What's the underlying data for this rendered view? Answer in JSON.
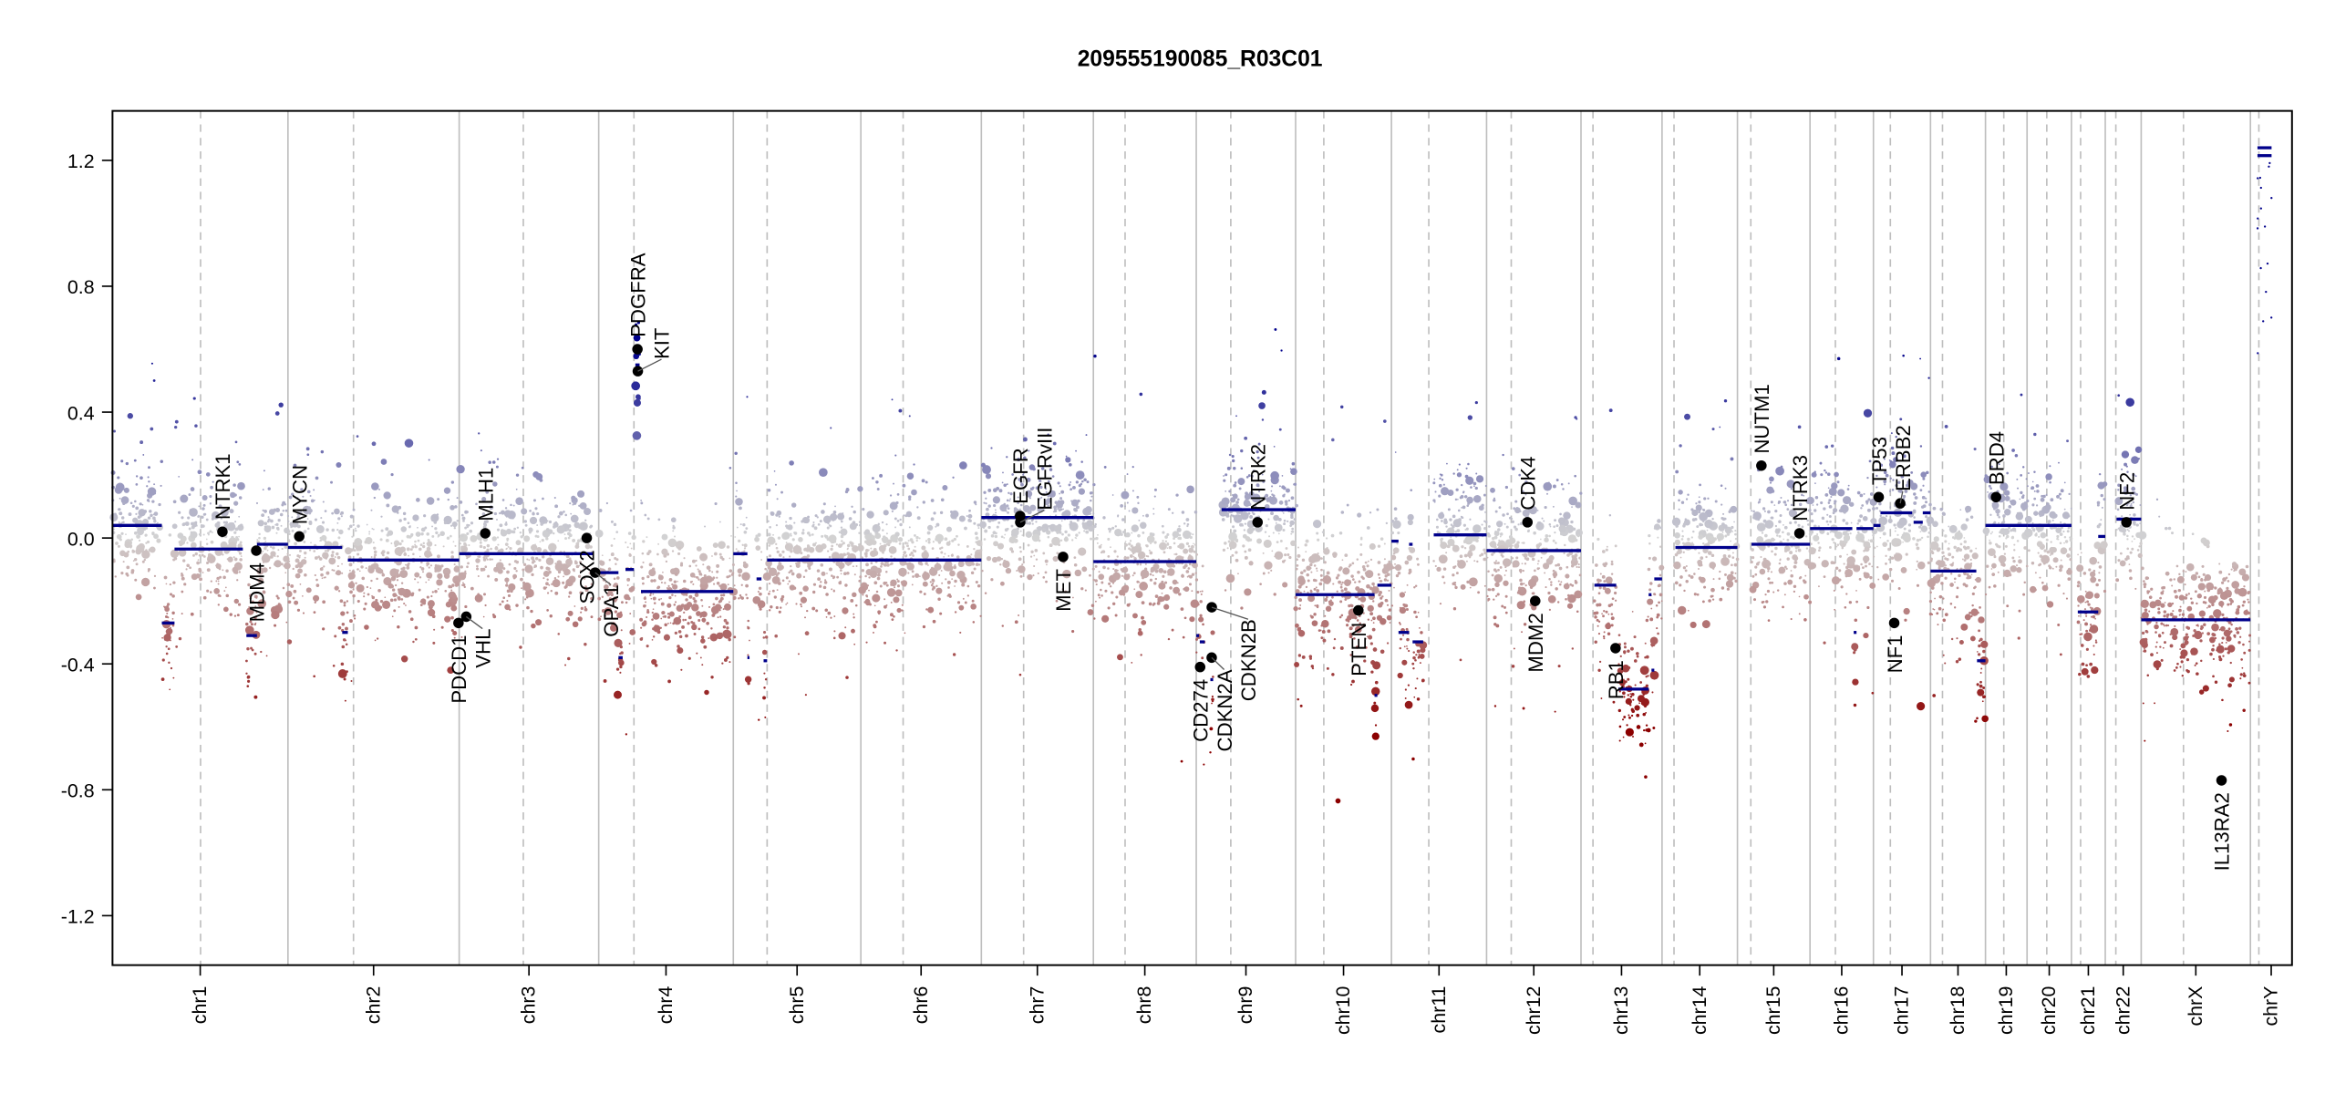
{
  "chart_data": {
    "type": "scatter",
    "title": "209555190085_R03C01",
    "xlabel": "",
    "ylabel": "",
    "ylim": [
      -1.35,
      1.35
    ],
    "y_ticks": [
      {
        "value": 1.2,
        "label": "1.2"
      },
      {
        "value": 0.8,
        "label": "0.8"
      },
      {
        "value": 0.4,
        "label": "0.4"
      },
      {
        "value": 0.0,
        "label": "0.0"
      },
      {
        "value": -0.4,
        "label": "-0.4"
      },
      {
        "value": -0.8,
        "label": "-0.8"
      },
      {
        "value": -1.2,
        "label": "-1.2"
      }
    ],
    "grid": "chromosome boundaries (solid) and centromeres (dashed)",
    "colors": {
      "loss": "#8b0000",
      "neutral": "#d3d3d3",
      "gain": "#00008b",
      "segment": "#00008b",
      "gene": "#000000",
      "boundary": "#bebebe"
    },
    "chromosomes": [
      {
        "name": "chr1",
        "length": 249,
        "centromere": 125
      },
      {
        "name": "chr2",
        "length": 243,
        "centromere": 93
      },
      {
        "name": "chr3",
        "length": 198,
        "centromere": 91
      },
      {
        "name": "chr4",
        "length": 191,
        "centromere": 50
      },
      {
        "name": "chr5",
        "length": 181,
        "centromere": 48
      },
      {
        "name": "chr6",
        "length": 171,
        "centromere": 60
      },
      {
        "name": "chr7",
        "length": 159,
        "centromere": 60
      },
      {
        "name": "chr8",
        "length": 146,
        "centromere": 45
      },
      {
        "name": "chr9",
        "length": 141,
        "centromere": 49
      },
      {
        "name": "chr10",
        "length": 136,
        "centromere": 40
      },
      {
        "name": "chr11",
        "length": 135,
        "centromere": 53
      },
      {
        "name": "chr12",
        "length": 134,
        "centromere": 35
      },
      {
        "name": "chr13",
        "length": 115,
        "centromere": 17
      },
      {
        "name": "chr14",
        "length": 107,
        "centromere": 17
      },
      {
        "name": "chr15",
        "length": 103,
        "centromere": 19
      },
      {
        "name": "chr16",
        "length": 90,
        "centromere": 36
      },
      {
        "name": "chr17",
        "length": 81,
        "centromere": 24
      },
      {
        "name": "chr18",
        "length": 78,
        "centromere": 17
      },
      {
        "name": "chr19",
        "length": 59,
        "centromere": 26
      },
      {
        "name": "chr20",
        "length": 63,
        "centromere": 28
      },
      {
        "name": "chr21",
        "length": 48,
        "centromere": 13
      },
      {
        "name": "chr22",
        "length": 51,
        "centromere": 15
      },
      {
        "name": "chrX",
        "length": 155,
        "centromere": 60
      },
      {
        "name": "chrY",
        "length": 59,
        "centromere": 12
      }
    ],
    "segments": [
      {
        "chr": "chr1",
        "start": 0,
        "end": 70,
        "value": 0.04
      },
      {
        "chr": "chr1",
        "start": 70,
        "end": 88,
        "value": -0.27
      },
      {
        "chr": "chr1",
        "start": 88,
        "end": 185,
        "value": -0.035
      },
      {
        "chr": "chr1",
        "start": 190,
        "end": 205,
        "value": -0.31
      },
      {
        "chr": "chr1",
        "start": 205,
        "end": 249,
        "value": -0.02
      },
      {
        "chr": "chr2",
        "start": 0,
        "end": 77,
        "value": -0.03
      },
      {
        "chr": "chr2",
        "start": 77,
        "end": 85,
        "value": -0.3
      },
      {
        "chr": "chr2",
        "start": 85,
        "end": 243,
        "value": -0.07
      },
      {
        "chr": "chr3",
        "start": 0,
        "end": 190,
        "value": -0.05
      },
      {
        "chr": "chr4",
        "start": 0,
        "end": 28,
        "value": -0.11
      },
      {
        "chr": "chr4",
        "start": 28,
        "end": 34,
        "value": -0.38
      },
      {
        "chr": "chr4",
        "start": 38,
        "end": 50,
        "value": -0.1
      },
      {
        "chr": "chr4",
        "start": 52,
        "end": 58,
        "value": 0.55
      },
      {
        "chr": "chr4",
        "start": 60,
        "end": 191,
        "value": -0.17
      },
      {
        "chr": "chr5",
        "start": 0,
        "end": 20,
        "value": -0.05
      },
      {
        "chr": "chr5",
        "start": 20,
        "end": 23,
        "value": -0.38
      },
      {
        "chr": "chr5",
        "start": 33,
        "end": 40,
        "value": -0.13
      },
      {
        "chr": "chr5",
        "start": 43,
        "end": 48,
        "value": -0.39
      },
      {
        "chr": "chr5",
        "start": 48,
        "end": 181,
        "value": -0.07
      },
      {
        "chr": "chr6",
        "start": 0,
        "end": 171,
        "value": -0.07
      },
      {
        "chr": "chr7",
        "start": 0,
        "end": 159,
        "value": 0.065
      },
      {
        "chr": "chr8",
        "start": 0,
        "end": 146,
        "value": -0.075
      },
      {
        "chr": "chr9",
        "start": 0,
        "end": 4,
        "value": -0.31
      },
      {
        "chr": "chr9",
        "start": 5,
        "end": 12,
        "value": -0.33
      },
      {
        "chr": "chr9",
        "start": 20,
        "end": 24,
        "value": -0.45
      },
      {
        "chr": "chr9",
        "start": 36,
        "end": 141,
        "value": 0.09
      },
      {
        "chr": "chr10",
        "start": 0,
        "end": 112,
        "value": -0.18
      },
      {
        "chr": "chr10",
        "start": 112,
        "end": 116,
        "value": -0.5
      },
      {
        "chr": "chr10",
        "start": 116,
        "end": 136,
        "value": -0.15
      },
      {
        "chr": "chr11",
        "start": 0,
        "end": 10,
        "value": -0.01
      },
      {
        "chr": "chr11",
        "start": 10,
        "end": 25,
        "value": -0.3
      },
      {
        "chr": "chr11",
        "start": 25,
        "end": 30,
        "value": -0.02
      },
      {
        "chr": "chr11",
        "start": 30,
        "end": 45,
        "value": -0.33
      },
      {
        "chr": "chr11",
        "start": 60,
        "end": 135,
        "value": 0.01
      },
      {
        "chr": "chr12",
        "start": 0,
        "end": 134,
        "value": -0.04
      },
      {
        "chr": "chr13",
        "start": 19,
        "end": 50,
        "value": -0.15
      },
      {
        "chr": "chr13",
        "start": 53,
        "end": 96,
        "value": -0.48
      },
      {
        "chr": "chr13",
        "start": 96,
        "end": 100,
        "value": -0.18
      },
      {
        "chr": "chr13",
        "start": 100,
        "end": 104,
        "value": -0.42
      },
      {
        "chr": "chr13",
        "start": 104,
        "end": 115,
        "value": -0.13
      },
      {
        "chr": "chr14",
        "start": 19,
        "end": 107,
        "value": -0.03
      },
      {
        "chr": "chr15",
        "start": 20,
        "end": 103,
        "value": -0.02
      },
      {
        "chr": "chr16",
        "start": 0,
        "end": 60,
        "value": 0.03
      },
      {
        "chr": "chr16",
        "start": 62,
        "end": 66,
        "value": -0.3
      },
      {
        "chr": "chr16",
        "start": 66,
        "end": 90,
        "value": 0.03
      },
      {
        "chr": "chr17",
        "start": 0,
        "end": 10,
        "value": 0.04
      },
      {
        "chr": "chr17",
        "start": 10,
        "end": 55,
        "value": 0.08
      },
      {
        "chr": "chr17",
        "start": 57,
        "end": 70,
        "value": 0.05
      },
      {
        "chr": "chr17",
        "start": 70,
        "end": 81,
        "value": 0.08
      },
      {
        "chr": "chr18",
        "start": 0,
        "end": 65,
        "value": -0.105
      },
      {
        "chr": "chr18",
        "start": 66,
        "end": 78,
        "value": -0.39
      },
      {
        "chr": "chr19",
        "start": 0,
        "end": 59,
        "value": 0.04
      },
      {
        "chr": "chr20",
        "start": 0,
        "end": 63,
        "value": 0.04
      },
      {
        "chr": "chr21",
        "start": 9,
        "end": 38,
        "value": -0.235
      },
      {
        "chr": "chr21",
        "start": 38,
        "end": 48,
        "value": 0.005
      },
      {
        "chr": "chr22",
        "start": 16,
        "end": 51,
        "value": 0.06
      },
      {
        "chr": "chrX",
        "start": 0,
        "end": 155,
        "value": -0.26
      },
      {
        "chr": "chrY",
        "start": 10,
        "end": 30,
        "value": 1.24
      },
      {
        "chr": "chrY",
        "start": 10,
        "end": 30,
        "value": 1.215
      }
    ],
    "genes": [
      {
        "name": "NTRK1",
        "chr": "chr1",
        "pos": 156,
        "value": 0.02,
        "label_side": "above"
      },
      {
        "name": "MDM4",
        "chr": "chr1",
        "pos": 204,
        "value": -0.04,
        "label_side": "below"
      },
      {
        "name": "MYCN",
        "chr": "chr2",
        "pos": 16,
        "value": 0.005,
        "label_side": "above"
      },
      {
        "name": "PDCD1",
        "chr": "chr2",
        "pos": 242,
        "value": -0.27,
        "label_side": "below"
      },
      {
        "name": "VHL",
        "chr": "chr3",
        "pos": 10,
        "value": -0.25,
        "label_side": "below"
      },
      {
        "name": "MLH1",
        "chr": "chr3",
        "pos": 37,
        "value": 0.015,
        "label_side": "above"
      },
      {
        "name": "SOX2",
        "chr": "chr3",
        "pos": 181,
        "value": 0.0,
        "label_side": "below"
      },
      {
        "name": "OPA1",
        "chr": "chr3",
        "pos": 193,
        "value": -0.11,
        "label_side": "below"
      },
      {
        "name": "PDGFRA",
        "chr": "chr4",
        "pos": 55,
        "value": 0.6,
        "label_side": "above"
      },
      {
        "name": "KIT",
        "chr": "chr4",
        "pos": 55.5,
        "value": 0.53,
        "label_side": "above"
      },
      {
        "name": "EGFR",
        "chr": "chr7",
        "pos": 55,
        "value": 0.07,
        "label_side": "above"
      },
      {
        "name": "EGFRvIII",
        "chr": "chr7",
        "pos": 55.2,
        "value": 0.05,
        "label_side": "above"
      },
      {
        "name": "MET",
        "chr": "chr7",
        "pos": 116,
        "value": -0.06,
        "label_side": "below"
      },
      {
        "name": "CD274",
        "chr": "chr9",
        "pos": 5.5,
        "value": -0.41,
        "label_side": "below"
      },
      {
        "name": "CDKN2A",
        "chr": "chr9",
        "pos": 21.9,
        "value": -0.38,
        "label_side": "below"
      },
      {
        "name": "CDKN2B",
        "chr": "chr9",
        "pos": 22.0,
        "value": -0.22,
        "label_side": "below"
      },
      {
        "name": "NTRK2",
        "chr": "chr9",
        "pos": 87,
        "value": 0.05,
        "label_side": "above"
      },
      {
        "name": "PTEN",
        "chr": "chr10",
        "pos": 89,
        "value": -0.23,
        "label_side": "below"
      },
      {
        "name": "CDK4",
        "chr": "chr12",
        "pos": 58,
        "value": 0.05,
        "label_side": "above"
      },
      {
        "name": "MDM2",
        "chr": "chr12",
        "pos": 69,
        "value": -0.2,
        "label_side": "below"
      },
      {
        "name": "RB1",
        "chr": "chr13",
        "pos": 49,
        "value": -0.35,
        "label_side": "below"
      },
      {
        "name": "NUTM1",
        "chr": "chr15",
        "pos": 34,
        "value": 0.23,
        "label_side": "above"
      },
      {
        "name": "NTRK3",
        "chr": "chr15",
        "pos": 88,
        "value": 0.015,
        "label_side": "above"
      },
      {
        "name": "TP53",
        "chr": "chr17",
        "pos": 7.5,
        "value": 0.13,
        "label_side": "above"
      },
      {
        "name": "NF1",
        "chr": "chr17",
        "pos": 29.5,
        "value": -0.27,
        "label_side": "below"
      },
      {
        "name": "ERBB2",
        "chr": "chr17",
        "pos": 38,
        "value": 0.11,
        "label_side": "above"
      },
      {
        "name": "BRD4",
        "chr": "chr19",
        "pos": 15,
        "value": 0.13,
        "label_side": "above"
      },
      {
        "name": "NF2",
        "chr": "chr22",
        "pos": 30,
        "value": 0.05,
        "label_side": "above"
      },
      {
        "name": "IL13RA2",
        "chr": "chrX",
        "pos": 114,
        "value": -0.77,
        "label_side": "below"
      }
    ]
  }
}
